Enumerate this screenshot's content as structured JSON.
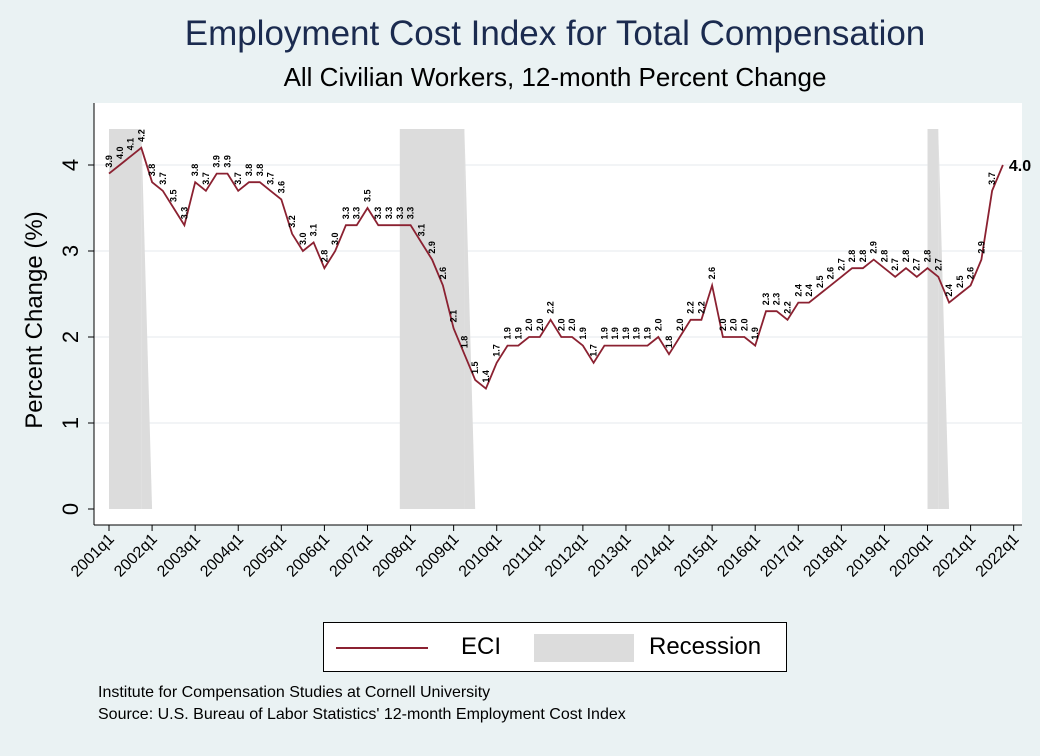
{
  "title": "Employment Cost Index for Total Compensation",
  "subtitle": "All Civilian Workers, 12-month Percent Change",
  "legend": {
    "eci_label": "ECI",
    "recession_label": "Recession"
  },
  "source": {
    "line1": "Institute for Compensation Studies at Cornell University",
    "line2": "Source: U.S. Bureau of Labor Statistics' 12-month Employment Cost Index"
  },
  "colors": {
    "eci": "#8b2131",
    "recession": "#dcdcdc",
    "plot_bg": "#ffffff",
    "page_bg": "#eaf2f3",
    "title": "#1b2b4f"
  },
  "chart_data": {
    "type": "line",
    "title": "Employment Cost Index for Total Compensation",
    "subtitle": "All Civilian Workers, 12-month Percent Change",
    "ylabel": "Percent Change (%)",
    "xlabel": "",
    "ylim": [
      0,
      4.4
    ],
    "yticks": [
      0,
      1,
      2,
      3,
      4
    ],
    "xticks": [
      "2001q1",
      "2002q1",
      "2003q1",
      "2004q1",
      "2005q1",
      "2006q1",
      "2007q1",
      "2008q1",
      "2009q1",
      "2010q1",
      "2011q1",
      "2012q1",
      "2013q1",
      "2014q1",
      "2015q1",
      "2016q1",
      "2017q1",
      "2018q1",
      "2019q1",
      "2020q1",
      "2021q1",
      "2022q1"
    ],
    "x_start": "2001q1",
    "grid": true,
    "legend_position": "bottom",
    "series": [
      {
        "name": "ECI",
        "values": [
          3.9,
          4.0,
          4.1,
          4.2,
          3.8,
          3.7,
          3.5,
          3.3,
          3.8,
          3.7,
          3.9,
          3.9,
          3.7,
          3.8,
          3.8,
          3.7,
          3.6,
          3.2,
          3.0,
          3.1,
          2.8,
          3.0,
          3.3,
          3.3,
          3.5,
          3.3,
          3.3,
          3.3,
          3.3,
          3.1,
          2.9,
          2.6,
          2.1,
          1.8,
          1.5,
          1.4,
          1.7,
          1.9,
          1.9,
          2.0,
          2.0,
          2.2,
          2.0,
          2.0,
          1.9,
          1.7,
          1.9,
          1.9,
          1.9,
          1.9,
          1.9,
          2.0,
          1.8,
          2.0,
          2.2,
          2.2,
          2.6,
          2.0,
          2.0,
          2.0,
          1.9,
          2.3,
          2.3,
          2.2,
          2.4,
          2.4,
          2.5,
          2.6,
          2.7,
          2.8,
          2.8,
          2.9,
          2.8,
          2.7,
          2.8,
          2.7,
          2.8,
          2.7,
          2.4,
          2.5,
          2.6,
          2.9,
          3.7,
          4.0
        ],
        "last_label": "4.0"
      }
    ],
    "recessions": [
      {
        "start": "2001q1",
        "end": "2001q4"
      },
      {
        "start": "2007q4",
        "end": "2009q2"
      },
      {
        "start": "2020q1",
        "end": "2020q2"
      }
    ]
  }
}
